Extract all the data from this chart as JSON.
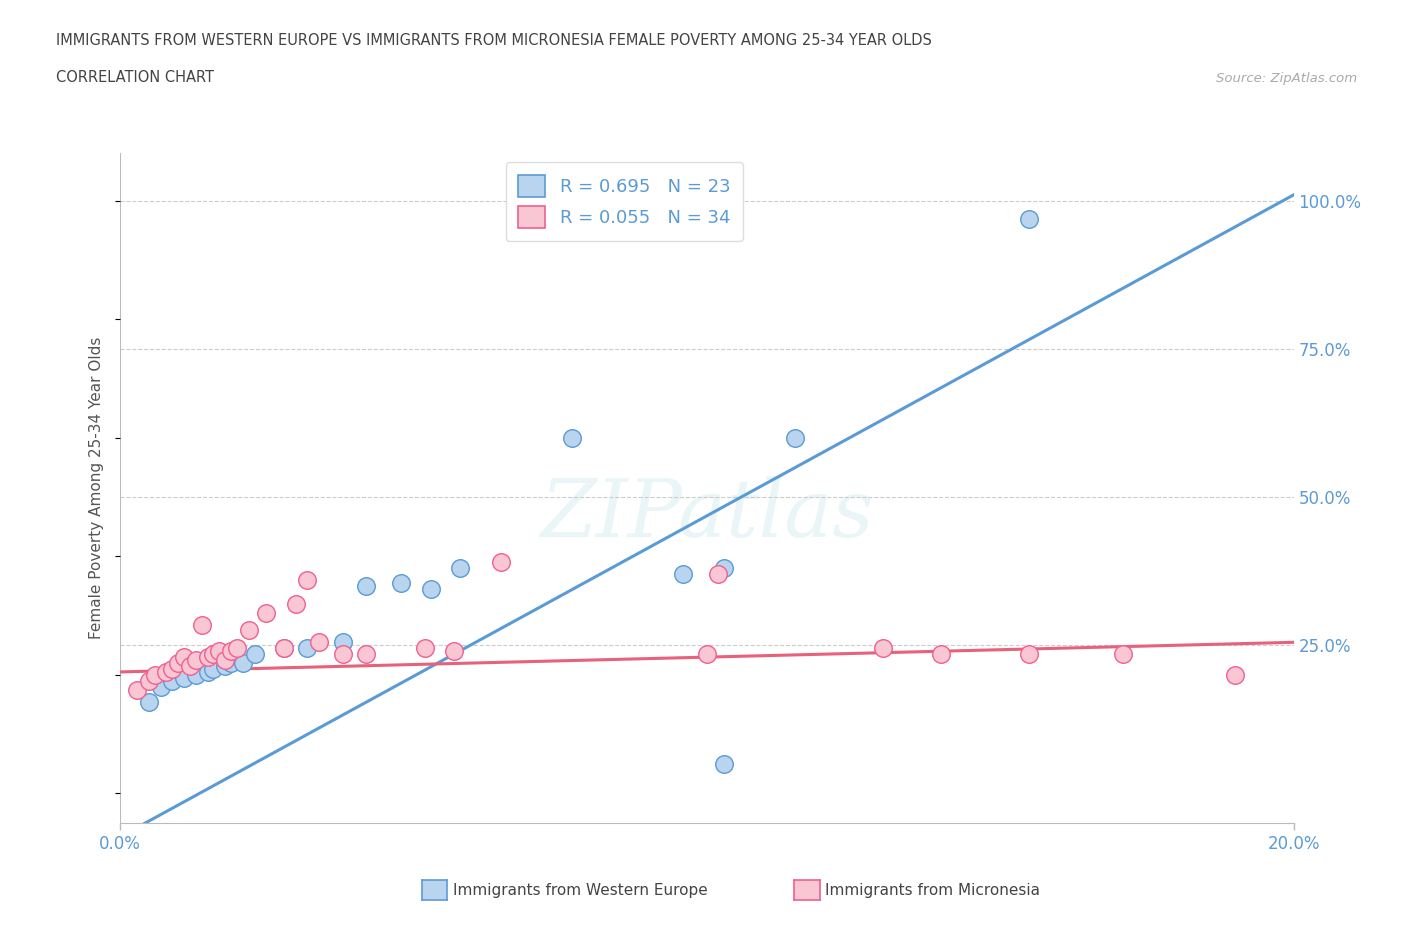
{
  "title_line1": "IMMIGRANTS FROM WESTERN EUROPE VS IMMIGRANTS FROM MICRONESIA FEMALE POVERTY AMONG 25-34 YEAR OLDS",
  "title_line2": "CORRELATION CHART",
  "source_text": "Source: ZipAtlas.com",
  "ylabel": "Female Poverty Among 25-34 Year Olds",
  "xlim": [
    0.0,
    0.2
  ],
  "ylim": [
    -0.05,
    1.08
  ],
  "ytick_values": [
    0.25,
    0.5,
    0.75,
    1.0
  ],
  "ytick_labels": [
    "25.0%",
    "50.0%",
    "75.0%",
    "100.0%"
  ],
  "xtick_values": [
    0.0,
    0.2
  ],
  "xtick_labels": [
    "0.0%",
    "20.0%"
  ],
  "legend_r1": "R = 0.695",
  "legend_n1": "N = 23",
  "legend_r2": "R = 0.055",
  "legend_n2": "N = 34",
  "color_blue_fill": "#b8d4ee",
  "color_blue_edge": "#5b9bd5",
  "color_pink_fill": "#f9c6d4",
  "color_pink_edge": "#f06090",
  "color_blue_line": "#5b9bd5",
  "color_pink_line": "#e8607a",
  "watermark": "ZIPatlas",
  "blue_scatter_x": [
    0.005,
    0.007,
    0.009,
    0.011,
    0.013,
    0.015,
    0.016,
    0.018,
    0.019,
    0.021,
    0.023,
    0.028,
    0.032,
    0.038,
    0.042,
    0.048,
    0.053,
    0.058,
    0.077,
    0.096,
    0.103,
    0.115,
    0.155
  ],
  "blue_scatter_y": [
    0.155,
    0.18,
    0.19,
    0.195,
    0.2,
    0.205,
    0.21,
    0.215,
    0.22,
    0.22,
    0.235,
    0.245,
    0.245,
    0.255,
    0.35,
    0.355,
    0.345,
    0.38,
    0.6,
    0.37,
    0.38,
    0.6,
    0.97
  ],
  "pink_scatter_x": [
    0.003,
    0.005,
    0.006,
    0.008,
    0.009,
    0.01,
    0.011,
    0.012,
    0.013,
    0.014,
    0.015,
    0.016,
    0.017,
    0.018,
    0.019,
    0.02,
    0.022,
    0.025,
    0.028,
    0.03,
    0.032,
    0.034,
    0.038,
    0.042,
    0.052,
    0.057,
    0.065,
    0.1,
    0.102,
    0.13,
    0.14,
    0.155,
    0.171,
    0.19
  ],
  "pink_scatter_y": [
    0.175,
    0.19,
    0.2,
    0.205,
    0.21,
    0.22,
    0.23,
    0.215,
    0.225,
    0.285,
    0.23,
    0.235,
    0.24,
    0.225,
    0.24,
    0.245,
    0.275,
    0.305,
    0.245,
    0.32,
    0.36,
    0.255,
    0.235,
    0.235,
    0.245,
    0.24,
    0.39,
    0.235,
    0.37,
    0.245,
    0.235,
    0.235,
    0.235,
    0.2
  ],
  "extra_blue_x": [
    0.103
  ],
  "extra_blue_y": [
    0.05
  ],
  "blue_line_x": [
    -0.003,
    0.2
  ],
  "blue_line_y": [
    -0.09,
    1.01
  ],
  "pink_line_x": [
    0.0,
    0.2
  ],
  "pink_line_y": [
    0.205,
    0.255
  ],
  "grid_color": "#cccccc",
  "tick_color": "#5b9bd5",
  "label_color": "#555555",
  "source_color": "#aaaaaa"
}
